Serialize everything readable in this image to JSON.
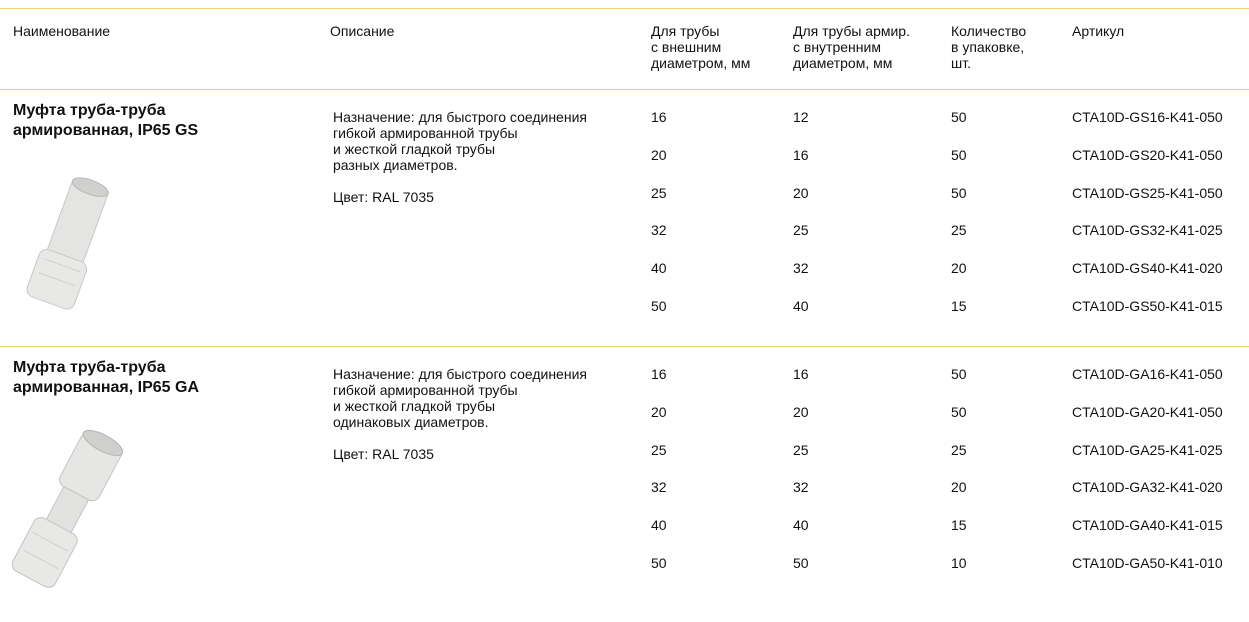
{
  "table": {
    "columns": [
      [
        "Наименование"
      ],
      [
        "Описание"
      ],
      [
        "Для трубы",
        "с внешним",
        "диаметром, мм"
      ],
      [
        "Для трубы армир.",
        "с внутренним",
        "диаметром, мм"
      ],
      [
        "Количество",
        "в упаковке,",
        "шт."
      ],
      [
        "Артикул"
      ]
    ],
    "products": [
      {
        "name": [
          "Муфта труба-труба",
          "армированная, IP65 GS"
        ],
        "description": [
          "Назначение: для быстрого соединения",
          "гибкой армированной трубы",
          "и жесткой гладкой трубы",
          "разных диаметров."
        ],
        "color": "Цвет: RAL 7035",
        "rows": [
          [
            16,
            12,
            50,
            "CTA10D-GS16-K41-050"
          ],
          [
            20,
            16,
            50,
            "CTA10D-GS20-K41-050"
          ],
          [
            25,
            20,
            50,
            "CTA10D-GS25-K41-050"
          ],
          [
            32,
            25,
            25,
            "CTA10D-GS32-K41-025"
          ],
          [
            40,
            32,
            20,
            "CTA10D-GS40-K41-020"
          ],
          [
            50,
            40,
            15,
            "CTA10D-GS50-K41-015"
          ]
        ]
      },
      {
        "name": [
          "Муфта труба-труба",
          "армированная, IP65 GA"
        ],
        "description": [
          "Назначение: для быстрого соединения",
          "гибкой армированной трубы",
          "и жесткой гладкой трубы",
          "одинаковых диаметров."
        ],
        "color": "Цвет: RAL 7035",
        "rows": [
          [
            16,
            16,
            50,
            "CTA10D-GA16-K41-050"
          ],
          [
            20,
            20,
            50,
            "CTA10D-GA20-K41-050"
          ],
          [
            25,
            25,
            25,
            "CTA10D-GA25-K41-025"
          ],
          [
            32,
            32,
            20,
            "CTA10D-GA32-K41-020"
          ],
          [
            40,
            40,
            15,
            "CTA10D-GA40-K41-015"
          ],
          [
            50,
            50,
            10,
            "CTA10D-GA50-K41-010"
          ]
        ]
      }
    ]
  }
}
